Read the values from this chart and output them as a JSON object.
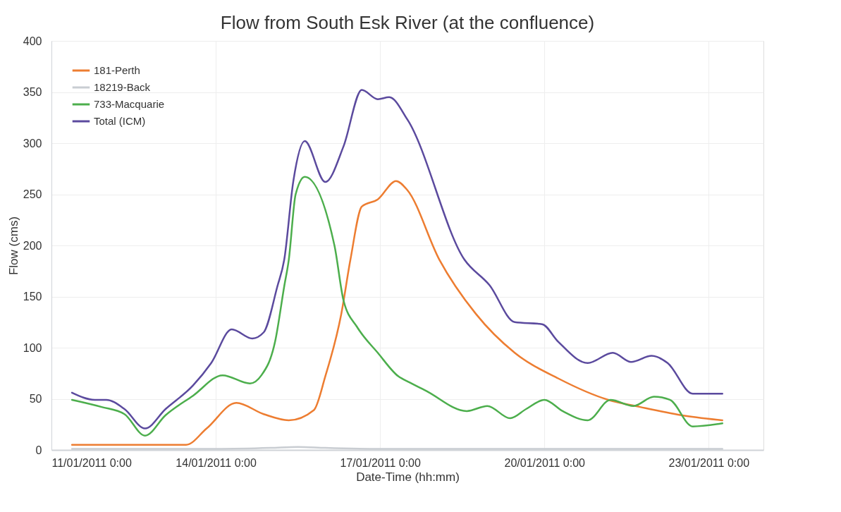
{
  "chart_data": {
    "type": "line",
    "title": "Flow from South Esk River (at the confluence)",
    "xlabel": "Date-Time (hh:mm)",
    "ylabel": "Flow (cms)",
    "xlim": [
      "2011-01-11T00:00",
      "2011-01-24T00:00"
    ],
    "xticks": [
      {
        "value": "2011-01-11T00:00",
        "label": "11/01/2011 0:00"
      },
      {
        "value": "2011-01-14T00:00",
        "label": "14/01/2011 0:00"
      },
      {
        "value": "2011-01-17T00:00",
        "label": "17/01/2011 0:00"
      },
      {
        "value": "2011-01-20T00:00",
        "label": "20/01/2011 0:00"
      },
      {
        "value": "2011-01-23T00:00",
        "label": "23/01/2011 0:00"
      }
    ],
    "ylim": [
      0,
      400
    ],
    "yticks": [
      0,
      50,
      100,
      150,
      200,
      250,
      300,
      350,
      400
    ],
    "grid": true,
    "legend": "top left",
    "line_style": "solid",
    "series": [
      {
        "name": "181-Perth",
        "color": "#ed7d31",
        "x": [
          "2011-01-11T09:00",
          "2011-01-13T11:00",
          "2011-01-13T20:00",
          "2011-01-14T09:00",
          "2011-01-14T21:00",
          "2011-01-15T08:00",
          "2011-01-15T19:00",
          "2011-01-16T00:00",
          "2011-01-16T07:00",
          "2011-01-16T11:00",
          "2011-01-16T16:00",
          "2011-01-16T23:00",
          "2011-01-17T07:00",
          "2011-01-17T12:00",
          "2011-01-18T02:00",
          "2011-01-18T18:00",
          "2011-01-19T11:00",
          "2011-01-20T06:00",
          "2011-01-21T04:00",
          "2011-01-21T18:00",
          "2011-01-22T12:00",
          "2011-01-23T06:00"
        ],
        "values": [
          5,
          5,
          21,
          46,
          35,
          29,
          39,
          72,
          133,
          186,
          238,
          245,
          263,
          254,
          186,
          133,
          95,
          70,
          49,
          42,
          34,
          29
        ]
      },
      {
        "name": "18219-Back",
        "color": "#c9cdd2",
        "x": [
          "2011-01-11T09:00",
          "2011-01-14T00:00",
          "2011-01-15T00:00",
          "2011-01-15T12:00",
          "2011-01-16T00:00",
          "2011-01-17T00:00",
          "2011-01-23T06:00"
        ],
        "values": [
          1,
          1,
          2,
          3,
          2,
          1,
          1
        ]
      },
      {
        "name": "733-Macquarie",
        "color": "#4cae4c",
        "x": [
          "2011-01-11T09:00",
          "2011-01-11T22:00",
          "2011-01-12T08:00",
          "2011-01-12T17:00",
          "2011-01-13T02:00",
          "2011-01-13T14:00",
          "2011-01-14T03:00",
          "2011-01-14T15:00",
          "2011-01-14T20:00",
          "2011-01-15T02:00",
          "2011-01-15T06:00",
          "2011-01-15T08:00",
          "2011-01-15T11:00",
          "2011-01-15T15:00",
          "2011-01-16T04:00",
          "2011-01-16T08:00",
          "2011-01-16T14:00",
          "2011-01-16T23:00",
          "2011-01-17T08:00",
          "2011-01-17T13:00",
          "2011-01-17T20:00",
          "2011-01-18T14:00",
          "2011-01-18T23:00",
          "2011-01-19T09:00",
          "2011-01-19T16:00",
          "2011-01-20T00:00",
          "2011-01-20T08:00",
          "2011-01-20T19:00",
          "2011-01-21T05:00",
          "2011-01-21T15:00",
          "2011-01-22T00:00",
          "2011-01-22T07:00",
          "2011-01-22T17:00",
          "2011-01-23T06:00"
        ],
        "values": [
          49,
          42,
          35,
          14,
          34,
          53,
          73,
          65,
          73,
          106,
          160,
          186,
          250,
          267,
          200,
          146,
          120,
          95,
          72,
          66,
          58,
          38,
          43,
          31,
          40,
          49,
          38,
          29,
          49,
          43,
          52,
          49,
          23,
          26
        ]
      },
      {
        "name": "Total (ICM)",
        "color": "#5b4a9e",
        "x": [
          "2011-01-11T09:00",
          "2011-01-11T19:00",
          "2011-01-12T00:00",
          "2011-01-12T08:00",
          "2011-01-12T17:00",
          "2011-01-13T02:00",
          "2011-01-13T14:00",
          "2011-01-13T22:00",
          "2011-01-14T07:00",
          "2011-01-14T16:00",
          "2011-01-14T21:00",
          "2011-01-15T03:00",
          "2011-01-15T06:00",
          "2011-01-15T10:00",
          "2011-01-15T15:00",
          "2011-01-16T00:00",
          "2011-01-16T08:00",
          "2011-01-16T16:00",
          "2011-01-16T23:00",
          "2011-01-17T04:00",
          "2011-01-17T12:00",
          "2011-01-18T13:00",
          "2011-01-19T00:00",
          "2011-01-19T11:00",
          "2011-01-19T23:00",
          "2011-01-20T06:00",
          "2011-01-20T19:00",
          "2011-01-21T06:00",
          "2011-01-21T14:00",
          "2011-01-21T23:00",
          "2011-01-22T06:00",
          "2011-01-22T17:00",
          "2011-01-23T06:00"
        ],
        "values": [
          56,
          49,
          49,
          40,
          21,
          40,
          63,
          85,
          118,
          109,
          115,
          160,
          186,
          263,
          302,
          262,
          297,
          352,
          343,
          345,
          323,
          186,
          161,
          125,
          123,
          106,
          85,
          95,
          86,
          92,
          85,
          55,
          55
        ]
      }
    ]
  }
}
